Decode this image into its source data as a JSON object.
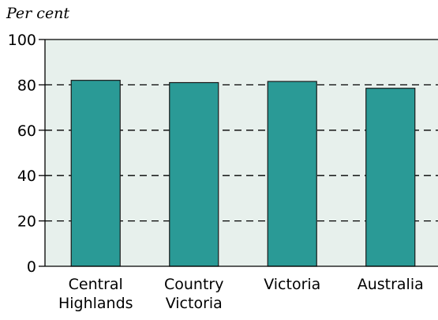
{
  "chart_data": {
    "type": "bar",
    "ylabel": "Per cent",
    "xlabel": "",
    "categories": [
      [
        "Central",
        "Highlands"
      ],
      [
        "Country",
        "Victoria"
      ],
      [
        "Victoria"
      ],
      [
        "Australia"
      ]
    ],
    "values": [
      82,
      81,
      81.5,
      78.5
    ],
    "ylim": [
      0,
      100
    ],
    "yticks": [
      0,
      20,
      40,
      60,
      80,
      100
    ],
    "grid": true,
    "colors": {
      "bar": "#2a9a96",
      "bar_edge": "#1a1a1a",
      "plot_bg": "#e7f0ec",
      "grid": "#000000"
    }
  }
}
